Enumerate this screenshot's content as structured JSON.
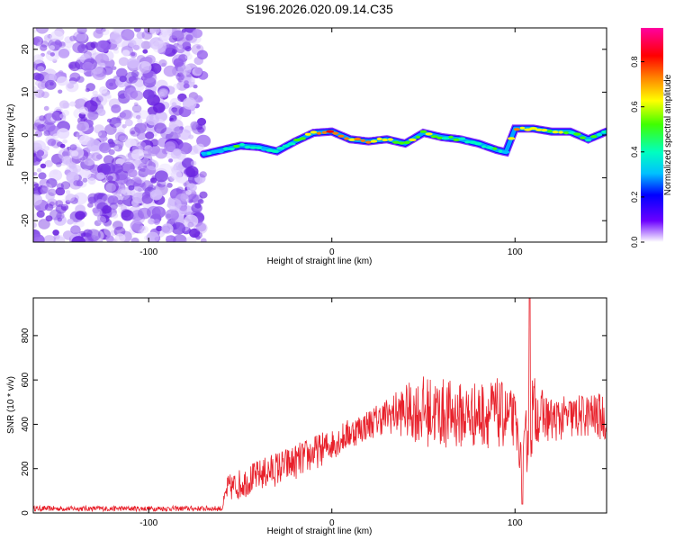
{
  "figure_title": "S196.2026.020.09.14.C35",
  "chart_data": [
    {
      "type": "heatmap",
      "title": "S196.2026.020.09.14.C35",
      "xlabel": "Height of straight line (km)",
      "ylabel": "Frequency (Hz)",
      "xlim": [
        -163,
        150
      ],
      "ylim": [
        -25,
        25
      ],
      "x_ticks": [
        -100,
        0,
        100
      ],
      "x_tick_labels": [
        "-100",
        "0",
        "100"
      ],
      "y_ticks": [
        -20,
        -10,
        0,
        10,
        20
      ],
      "y_tick_labels": [
        "-20",
        "-10",
        "0",
        "10",
        "20"
      ],
      "colorbar": {
        "label": "Normalized spectral amplitude",
        "range": [
          0,
          0.95
        ],
        "ticks": [
          0.0,
          0.2,
          0.4,
          0.6,
          0.8
        ],
        "tick_labels": [
          "0.0",
          "0.2",
          "0.4",
          "0.6",
          "0.8"
        ]
      },
      "noise_region_x": [
        -163,
        -70
      ],
      "signal_track": {
        "x": [
          -70,
          -60,
          -50,
          -40,
          -30,
          -20,
          -10,
          0,
          10,
          20,
          30,
          40,
          50,
          60,
          70,
          80,
          90,
          95,
          100,
          110,
          120,
          130,
          140,
          150
        ],
        "frequency_hz": [
          -4.5,
          -3.5,
          -2.5,
          -2.8,
          -3.8,
          -1.5,
          0.5,
          0.8,
          -1.0,
          -1.5,
          -1.0,
          -2.0,
          0.5,
          -0.5,
          -1.0,
          -2.0,
          -3.5,
          -4.0,
          1.5,
          1.5,
          0.8,
          0.8,
          -1.0,
          0.8
        ],
        "peak_amplitude": [
          0.35,
          0.4,
          0.45,
          0.4,
          0.35,
          0.5,
          0.75,
          0.95,
          0.7,
          0.8,
          0.6,
          0.55,
          0.6,
          0.5,
          0.45,
          0.4,
          0.5,
          0.4,
          0.75,
          0.7,
          0.6,
          0.55,
          0.45,
          0.4
        ]
      }
    },
    {
      "type": "line",
      "series_name": "SNR",
      "color": "#e8202a",
      "xlabel": "Height of straight line (km)",
      "ylabel": "SNR (10 * v/v)",
      "xlim": [
        -163,
        150
      ],
      "ylim": [
        0,
        970
      ],
      "x_ticks": [
        -100,
        0,
        100
      ],
      "x_tick_labels": [
        "-100",
        "0",
        "100"
      ],
      "y_ticks": [
        0,
        200,
        400,
        600,
        800
      ],
      "y_tick_labels": [
        "0",
        "200",
        "400",
        "600",
        "800"
      ],
      "envelope": {
        "x": [
          -163,
          -120,
          -80,
          -60,
          -57,
          -50,
          -40,
          -30,
          -20,
          -10,
          0,
          10,
          20,
          30,
          40,
          50,
          60,
          70,
          80,
          90,
          100,
          104,
          108,
          112,
          120,
          130,
          140,
          150
        ],
        "mean": [
          20,
          20,
          20,
          20,
          110,
          130,
          170,
          200,
          230,
          270,
          310,
          360,
          400,
          440,
          460,
          460,
          450,
          440,
          445,
          450,
          420,
          200,
          450,
          450,
          420,
          430,
          440,
          430
        ],
        "amplitude": [
          12,
          12,
          12,
          12,
          60,
          70,
          70,
          80,
          80,
          80,
          70,
          70,
          70,
          80,
          120,
          160,
          160,
          150,
          150,
          160,
          120,
          60,
          250,
          130,
          100,
          100,
          100,
          110
        ]
      },
      "notable_points": [
        {
          "x": 108,
          "y": 970,
          "label": "peak"
        },
        {
          "x": 104,
          "y": 40,
          "label": "dip"
        }
      ]
    }
  ]
}
